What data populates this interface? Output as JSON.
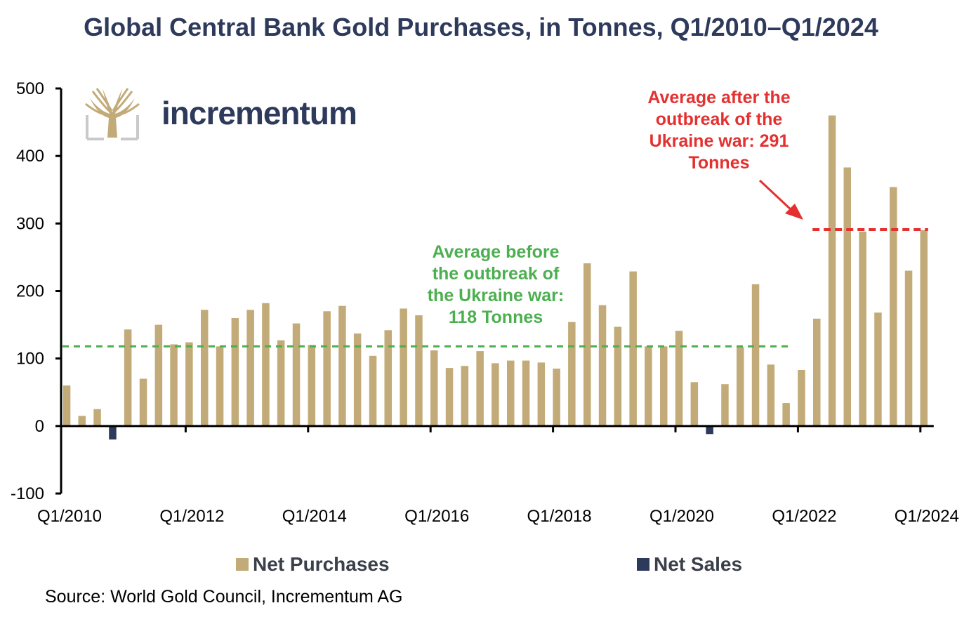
{
  "title": "Global Central Bank Gold Purchases, in Tonnes, Q1/2010–Q1/2024",
  "brand": {
    "name": "incrementum",
    "logo_icon": "tree-logo-icon"
  },
  "source": "Source: World Gold Council, Incrementum AG",
  "legend": [
    {
      "label": "Net Purchases",
      "color": "#c2ab78"
    },
    {
      "label": "Net Sales",
      "color": "#2e3a5c"
    }
  ],
  "chart_data": {
    "type": "bar",
    "ylim": [
      -100,
      500
    ],
    "yticks": [
      -100,
      0,
      100,
      200,
      300,
      400,
      500
    ],
    "xtick_labels": [
      "Q1/2010",
      "Q1/2012",
      "Q1/2014",
      "Q1/2016",
      "Q1/2018",
      "Q1/2020",
      "Q1/2022",
      "Q1/2024"
    ],
    "categories": [
      "Q1/2010",
      "Q2/2010",
      "Q3/2010",
      "Q4/2010",
      "Q1/2011",
      "Q2/2011",
      "Q3/2011",
      "Q4/2011",
      "Q1/2012",
      "Q2/2012",
      "Q3/2012",
      "Q4/2012",
      "Q1/2013",
      "Q2/2013",
      "Q3/2013",
      "Q4/2013",
      "Q1/2014",
      "Q2/2014",
      "Q3/2014",
      "Q4/2014",
      "Q1/2015",
      "Q2/2015",
      "Q3/2015",
      "Q4/2015",
      "Q1/2016",
      "Q2/2016",
      "Q3/2016",
      "Q4/2016",
      "Q1/2017",
      "Q2/2017",
      "Q3/2017",
      "Q4/2017",
      "Q1/2018",
      "Q2/2018",
      "Q3/2018",
      "Q4/2018",
      "Q1/2019",
      "Q2/2019",
      "Q3/2019",
      "Q4/2019",
      "Q1/2020",
      "Q2/2020",
      "Q3/2020",
      "Q4/2020",
      "Q1/2021",
      "Q2/2021",
      "Q3/2021",
      "Q4/2021",
      "Q1/2022",
      "Q2/2022",
      "Q3/2022",
      "Q4/2022",
      "Q1/2023",
      "Q2/2023",
      "Q3/2023",
      "Q4/2023",
      "Q1/2024"
    ],
    "series": [
      {
        "name": "Net Purchases",
        "color": "#c2ab78",
        "values": [
          60,
          15,
          25,
          0,
          143,
          70,
          150,
          121,
          124,
          172,
          118,
          160,
          172,
          182,
          127,
          152,
          120,
          170,
          178,
          137,
          104,
          142,
          174,
          164,
          112,
          86,
          89,
          111,
          93,
          97,
          97,
          94,
          85,
          154,
          241,
          179,
          147,
          229,
          118,
          118,
          141,
          65,
          0,
          62,
          117,
          210,
          91,
          34,
          83,
          159,
          460,
          383,
          288,
          168,
          354,
          230,
          290
        ]
      },
      {
        "name": "Net Sales",
        "color": "#2e3a5c",
        "values": [
          0,
          0,
          0,
          -20,
          0,
          0,
          0,
          0,
          0,
          0,
          0,
          0,
          0,
          0,
          0,
          0,
          0,
          0,
          0,
          0,
          0,
          0,
          0,
          0,
          0,
          0,
          0,
          0,
          0,
          0,
          0,
          0,
          0,
          0,
          0,
          0,
          0,
          0,
          0,
          0,
          0,
          0,
          -12,
          0,
          0,
          0,
          0,
          0,
          0,
          0,
          0,
          0,
          0,
          0,
          0,
          0,
          0
        ]
      }
    ],
    "averages": [
      {
        "label": "before",
        "value": 118,
        "from": "Q1/2010",
        "to": "Q4/2021",
        "color": "#4caf50"
      },
      {
        "label": "after",
        "value": 291,
        "from": "Q2/2022",
        "to": "Q1/2024",
        "color": "#e53030"
      }
    ],
    "annotations": {
      "before": [
        "Average before",
        "the outbreak of",
        "the Ukraine war:",
        "118 Tonnes"
      ],
      "after": [
        "Average after the",
        "outbreak of the",
        "Ukraine war: 291",
        "Tonnes"
      ]
    }
  }
}
